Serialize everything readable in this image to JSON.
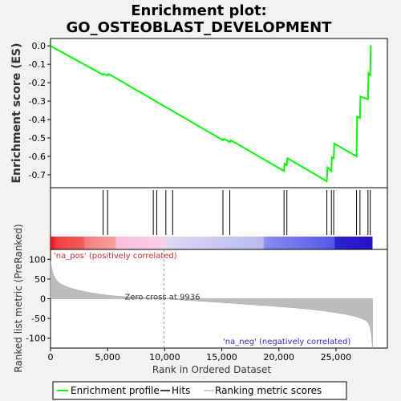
{
  "chart_data": {
    "type": "line",
    "title_lines": [
      "Enrichment plot:",
      "GO_OSTEOBLAST_DEVELOPMENT"
    ],
    "xlabel": "Rank in Ordered Dataset",
    "xlim": [
      0,
      29500
    ],
    "x_ticks": [
      0,
      5000,
      10000,
      15000,
      20000,
      25000
    ],
    "x_tick_labels": [
      "0",
      "5,000",
      "10,000",
      "15,000",
      "20,000",
      "25,000"
    ],
    "enrichment": {
      "ylabel": "Enrichment score (ES)",
      "ylim": [
        -0.77,
        0.04
      ],
      "y_ticks": [
        0.0,
        -0.1,
        -0.2,
        -0.3,
        -0.4,
        -0.5,
        -0.6,
        -0.7
      ],
      "y_tick_labels": [
        "0.0",
        "-0.1",
        "-0.2",
        "-0.3",
        "-0.4",
        "-0.5",
        "-0.6",
        "-0.7"
      ],
      "color": "#00ff00",
      "points": [
        [
          0,
          0.0
        ],
        [
          4600,
          -0.157
        ],
        [
          4650,
          -0.152
        ],
        [
          5000,
          -0.16
        ],
        [
          5100,
          -0.153
        ],
        [
          15100,
          -0.512
        ],
        [
          15200,
          -0.505
        ],
        [
          15700,
          -0.522
        ],
        [
          15800,
          -0.512
        ],
        [
          20450,
          -0.68
        ],
        [
          20500,
          -0.64
        ],
        [
          20700,
          -0.648
        ],
        [
          20750,
          -0.61
        ],
        [
          24200,
          -0.735
        ],
        [
          24250,
          -0.66
        ],
        [
          24600,
          -0.68
        ],
        [
          24650,
          -0.605
        ],
        [
          24800,
          -0.61
        ],
        [
          24850,
          -0.53
        ],
        [
          26800,
          -0.6
        ],
        [
          26850,
          -0.385
        ],
        [
          27100,
          -0.392
        ],
        [
          27150,
          -0.275
        ],
        [
          27800,
          -0.29
        ],
        [
          27850,
          -0.15
        ],
        [
          28000,
          -0.16
        ],
        [
          28050,
          0.0
        ],
        [
          28100,
          0.0
        ]
      ]
    },
    "hits": [
      4600,
      5000,
      9000,
      9300,
      10100,
      10700,
      15100,
      15700,
      20450,
      20700,
      24200,
      24600,
      24800,
      26800,
      27100,
      27800,
      28000
    ],
    "ranked_metric": {
      "ylabel": "Ranked list metric (PreRanked)",
      "ylim": [
        -125,
        125
      ],
      "y_ticks": [
        100,
        50,
        0,
        -50,
        -100
      ],
      "y_tick_labels": [
        "100",
        "50",
        "0",
        "-50",
        "-100"
      ],
      "n_ranks": 28200,
      "zero_cross": 9936,
      "zero_cross_label": "Zero cross at 9936",
      "pos_label": "'na_pos' (positively correlated)",
      "neg_label": "'na_neg' (negatively correlated)"
    },
    "legend": {
      "placement": "bottom",
      "entries": [
        {
          "label": "Enrichment profile",
          "color": "#00ff00"
        },
        {
          "label": "Hits",
          "color": "#000000"
        },
        {
          "label": "Ranking metric scores",
          "color": "#c0c0c0"
        }
      ]
    }
  }
}
